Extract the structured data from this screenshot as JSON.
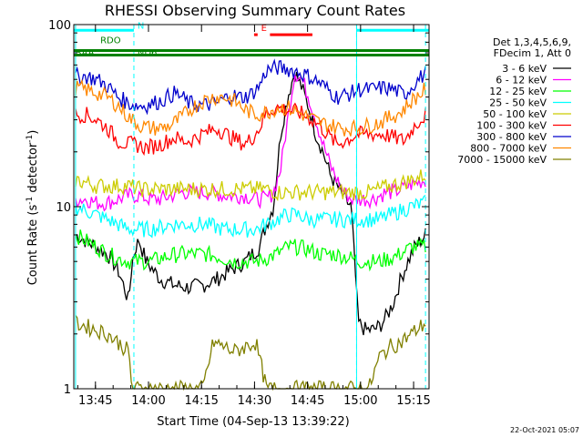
{
  "chart_data": {
    "type": "line",
    "title": "RHESSI Observing Summary Count Rates",
    "xlabel": "Start Time (04-Sep-13 13:39:22)",
    "ylabel": "Count Rate (s^-1 detector^-1)",
    "ylabel_main": "Count Rate (s",
    "ylabel_sup1": "-1",
    "ylabel_mid": " detector",
    "ylabel_sup2": "-1",
    "ylabel_end": ")",
    "yscale": "log",
    "ylim": [
      1,
      100
    ],
    "xlim_minutes": [
      -0.5,
      100
    ],
    "x_ticks": [
      {
        "label": "13:45",
        "min": 5.63
      },
      {
        "label": "14:00",
        "min": 20.63
      },
      {
        "label": "14:15",
        "min": 35.63
      },
      {
        "label": "14:30",
        "min": 50.63
      },
      {
        "label": "14:45",
        "min": 65.63
      },
      {
        "label": "15:00",
        "min": 80.63
      },
      {
        "label": "15:15",
        "min": 95.63
      }
    ],
    "y_tick_labels": [
      {
        "label": "100",
        "value": 100
      },
      {
        "label": "10",
        "value": 10
      },
      {
        "label": "1",
        "value": 1
      }
    ],
    "legend_header": [
      "Det 1,3,4,5,6,9,",
      "FDecim 1, Att 0"
    ],
    "series": [
      {
        "name": "3 - 6 keV",
        "color": "#000000",
        "x": [
          0,
          3,
          6,
          9,
          12,
          14,
          15,
          16,
          17,
          18,
          20,
          24,
          28,
          32,
          36,
          40,
          44,
          48,
          50,
          52,
          54,
          56,
          58,
          60,
          62,
          64,
          66,
          68,
          70,
          72,
          74,
          76,
          78,
          80,
          82,
          84,
          86,
          88,
          90,
          92,
          94,
          96,
          99
        ],
        "y": [
          7,
          6.5,
          6,
          5.5,
          4.5,
          3.5,
          3,
          5,
          6,
          6.5,
          5,
          4,
          3.7,
          3.6,
          3.7,
          4,
          4.5,
          5,
          5.5,
          6,
          8,
          10,
          25,
          40,
          55,
          45,
          35,
          25,
          20,
          15,
          13,
          11,
          10,
          2.3,
          2.1,
          2.1,
          2.2,
          2.5,
          3.0,
          4.0,
          5.0,
          6.0,
          7.0
        ]
      },
      {
        "name": "6 - 12 keV",
        "color": "#ff00ff",
        "x": [
          0,
          3,
          6,
          9,
          12,
          15,
          18,
          21,
          24,
          27,
          30,
          33,
          36,
          39,
          42,
          45,
          48,
          51,
          54,
          56,
          58,
          60,
          62,
          64,
          66,
          68,
          70,
          72,
          74,
          76,
          78,
          80,
          82,
          84,
          86,
          88,
          90,
          92,
          94,
          96,
          99
        ],
        "y": [
          11,
          11,
          10.5,
          10.5,
          11,
          11.5,
          11.5,
          11,
          11,
          11.5,
          12,
          12,
          12,
          12,
          11.5,
          11.5,
          11.5,
          11,
          11,
          12,
          16,
          30,
          55,
          50,
          40,
          30,
          22,
          17,
          14,
          12,
          11,
          11,
          11,
          11,
          11.5,
          12,
          12,
          12.5,
          13,
          13.5,
          14
        ]
      },
      {
        "name": "12 - 25 keV",
        "color": "#00ff00",
        "x": [
          0,
          3,
          6,
          9,
          12,
          15,
          18,
          21,
          24,
          27,
          30,
          33,
          36,
          39,
          42,
          45,
          48,
          51,
          54,
          57,
          60,
          63,
          66,
          69,
          72,
          75,
          78,
          80,
          83,
          86,
          89,
          92,
          95,
          99
        ],
        "y": [
          7,
          6.5,
          6,
          5.5,
          5.2,
          5,
          5,
          5,
          5.2,
          5.4,
          5.5,
          5.5,
          5.5,
          5.4,
          5.2,
          5,
          5,
          5,
          5.2,
          5.5,
          6,
          6,
          5.8,
          5.5,
          5.5,
          5.4,
          5.2,
          5,
          5,
          5,
          5.2,
          5.5,
          6,
          6
        ]
      },
      {
        "name": "25 - 50 keV",
        "color": "#00ffff",
        "x": [
          0,
          3,
          6,
          9,
          12,
          15,
          18,
          21,
          24,
          27,
          30,
          33,
          36,
          39,
          42,
          45,
          48,
          51,
          54,
          57,
          60,
          63,
          66,
          69,
          72,
          75,
          78,
          80,
          83,
          86,
          89,
          92,
          95,
          99
        ],
        "y": [
          10,
          9.5,
          9,
          8.5,
          8,
          7.5,
          7.5,
          7.5,
          7.7,
          8,
          8,
          8,
          8,
          7.8,
          7.5,
          7.5,
          7.5,
          7.5,
          8,
          8.5,
          9,
          9,
          8.5,
          8.5,
          8.5,
          8.5,
          8.5,
          8.5,
          8.5,
          8.5,
          9,
          9.5,
          10,
          10.5
        ]
      },
      {
        "name": "50 - 100 keV",
        "color": "#cccc00",
        "x": [
          0,
          3,
          6,
          9,
          12,
          15,
          18,
          21,
          24,
          27,
          30,
          33,
          36,
          39,
          42,
          45,
          48,
          51,
          54,
          57,
          60,
          63,
          66,
          69,
          72,
          75,
          78,
          80,
          83,
          86,
          89,
          92,
          95,
          99
        ],
        "y": [
          14,
          13.5,
          13,
          13,
          13,
          13,
          12.5,
          12.5,
          12.5,
          12.5,
          12.5,
          12.5,
          12.5,
          12.5,
          12.5,
          12.5,
          12.5,
          12.5,
          12.5,
          12,
          12,
          12,
          12,
          12,
          12,
          12,
          12,
          12,
          12,
          12.5,
          13,
          13.5,
          14,
          15
        ]
      },
      {
        "name": "100 - 300 keV",
        "color": "#ff0000",
        "x": [
          0,
          3,
          6,
          9,
          12,
          15,
          17,
          20,
          24,
          28,
          30,
          32,
          36,
          40,
          44,
          46,
          48,
          50,
          52,
          54,
          57,
          60,
          63,
          66,
          69,
          72,
          74,
          76,
          78,
          80,
          84,
          87,
          90,
          93,
          96,
          99
        ],
        "y": [
          32,
          32,
          30,
          27,
          23,
          22,
          22,
          21,
          22,
          24,
          23,
          23,
          25,
          27,
          24,
          23,
          22,
          24,
          27,
          33,
          35,
          34,
          33,
          31,
          28,
          24,
          22,
          23,
          24,
          25,
          25,
          25,
          24,
          23,
          28,
          32
        ]
      },
      {
        "name": "300 - 800 keV",
        "color": "#0000cc",
        "x": [
          0,
          3,
          6,
          9,
          12,
          15,
          17,
          20,
          24,
          28,
          30,
          32,
          36,
          40,
          44,
          46,
          48,
          50,
          52,
          54,
          57,
          60,
          63,
          66,
          69,
          72,
          74,
          76,
          78,
          80,
          84,
          87,
          90,
          93,
          96,
          99
        ],
        "y": [
          52,
          52,
          50,
          46,
          40,
          37,
          36,
          36,
          38,
          42,
          40,
          37,
          36,
          37,
          41,
          40,
          40,
          42,
          46,
          56,
          58,
          57,
          55,
          52,
          48,
          43,
          40,
          41,
          42,
          44,
          44,
          45,
          44,
          41,
          48,
          54
        ]
      },
      {
        "name": "800 - 7000 keV",
        "color": "#ff8800",
        "x": [
          0,
          3,
          6,
          9,
          12,
          15,
          18,
          21,
          24,
          27,
          30,
          33,
          36,
          39,
          42,
          45,
          48,
          51,
          54,
          57,
          60,
          63,
          66,
          69,
          72,
          75,
          78,
          80,
          83,
          86,
          89,
          92,
          95,
          99
        ],
        "y": [
          45,
          44,
          42,
          40,
          36,
          31,
          28,
          27,
          27,
          28,
          31,
          35,
          38,
          40,
          40,
          38,
          34,
          32,
          33,
          35,
          35,
          33,
          31,
          29,
          28,
          27,
          27,
          27,
          28,
          29,
          31,
          33,
          38,
          44
        ]
      },
      {
        "name": "7000 - 15000 keV",
        "color": "#808000",
        "x": [
          0,
          3,
          6,
          9,
          12,
          15,
          16,
          18,
          21,
          24,
          27,
          30,
          33,
          36,
          39,
          42,
          45,
          48,
          51,
          54,
          57,
          60,
          63,
          66,
          69,
          72,
          75,
          78,
          80,
          83,
          86,
          89,
          92,
          95,
          99
        ],
        "y": [
          2.3,
          2.2,
          2.1,
          2.0,
          1.8,
          1.6,
          1.0,
          1.0,
          1.0,
          1.0,
          1.0,
          1.0,
          1.0,
          1.0,
          1.8,
          1.7,
          1.6,
          1.7,
          1.8,
          1.0,
          1.0,
          1.0,
          1.0,
          1.0,
          1.0,
          1.0,
          1.0,
          1.0,
          1.0,
          1.0,
          1.5,
          1.7,
          1.8,
          2.0,
          2.3
        ]
      }
    ],
    "flag_bars": [
      {
        "label": "",
        "color": "#00ffff",
        "x": [
          -0.5,
          16.5
        ],
        "y": 93
      },
      {
        "label": "N",
        "color": "#00ffff",
        "x": [
          16.5,
          16.5
        ],
        "y": 93,
        "label_only": true
      },
      {
        "label": "",
        "color": "#00ffff",
        "x": [
          79.5,
          100
        ],
        "y": 93
      },
      {
        "label": "E",
        "color": "#ff0000",
        "x": [
          55,
          67
        ],
        "y": 88
      },
      {
        "label": "",
        "color": "#ff0000",
        "x": [
          50.5,
          51.5
        ],
        "y": 88
      },
      {
        "label": "RDO",
        "color": "#008000",
        "x": [
          -0.5,
          100
        ],
        "y": 72
      },
      {
        "label": "SAA",
        "color": "#008000",
        "x": [
          -0.5,
          100
        ],
        "y": 68
      }
    ],
    "flag_labels": [
      {
        "text": "N",
        "x": 17.5,
        "y": 93,
        "color": "#00ffff"
      },
      {
        "text": "E",
        "x": 52.5,
        "y": 90,
        "color": "#ff0000"
      },
      {
        "text": "RDO",
        "x": 7,
        "y": 77,
        "color": "#008000"
      },
      {
        "text": "SAA",
        "x": 0,
        "y": 66,
        "color": "#008000"
      },
      {
        "text": "ND6",
        "x": 17.5,
        "y": 66,
        "color": "#008000"
      }
    ],
    "vertical_lines": [
      {
        "x": 16.5,
        "color": "#00ffff",
        "style": "dash"
      },
      {
        "x": 79.5,
        "color": "#00ffff",
        "style": "dash"
      },
      {
        "x": 99,
        "color": "#00ffff",
        "style": "dash"
      },
      {
        "x": 0,
        "color": "#00ffff",
        "style": "solid"
      },
      {
        "x": 79.5,
        "color": "#00ffff",
        "style": "solid"
      }
    ],
    "timestamp": "22-Oct-2021 05:07",
    "colors": {
      "background": "#ffffff",
      "axes": "#000000"
    }
  }
}
